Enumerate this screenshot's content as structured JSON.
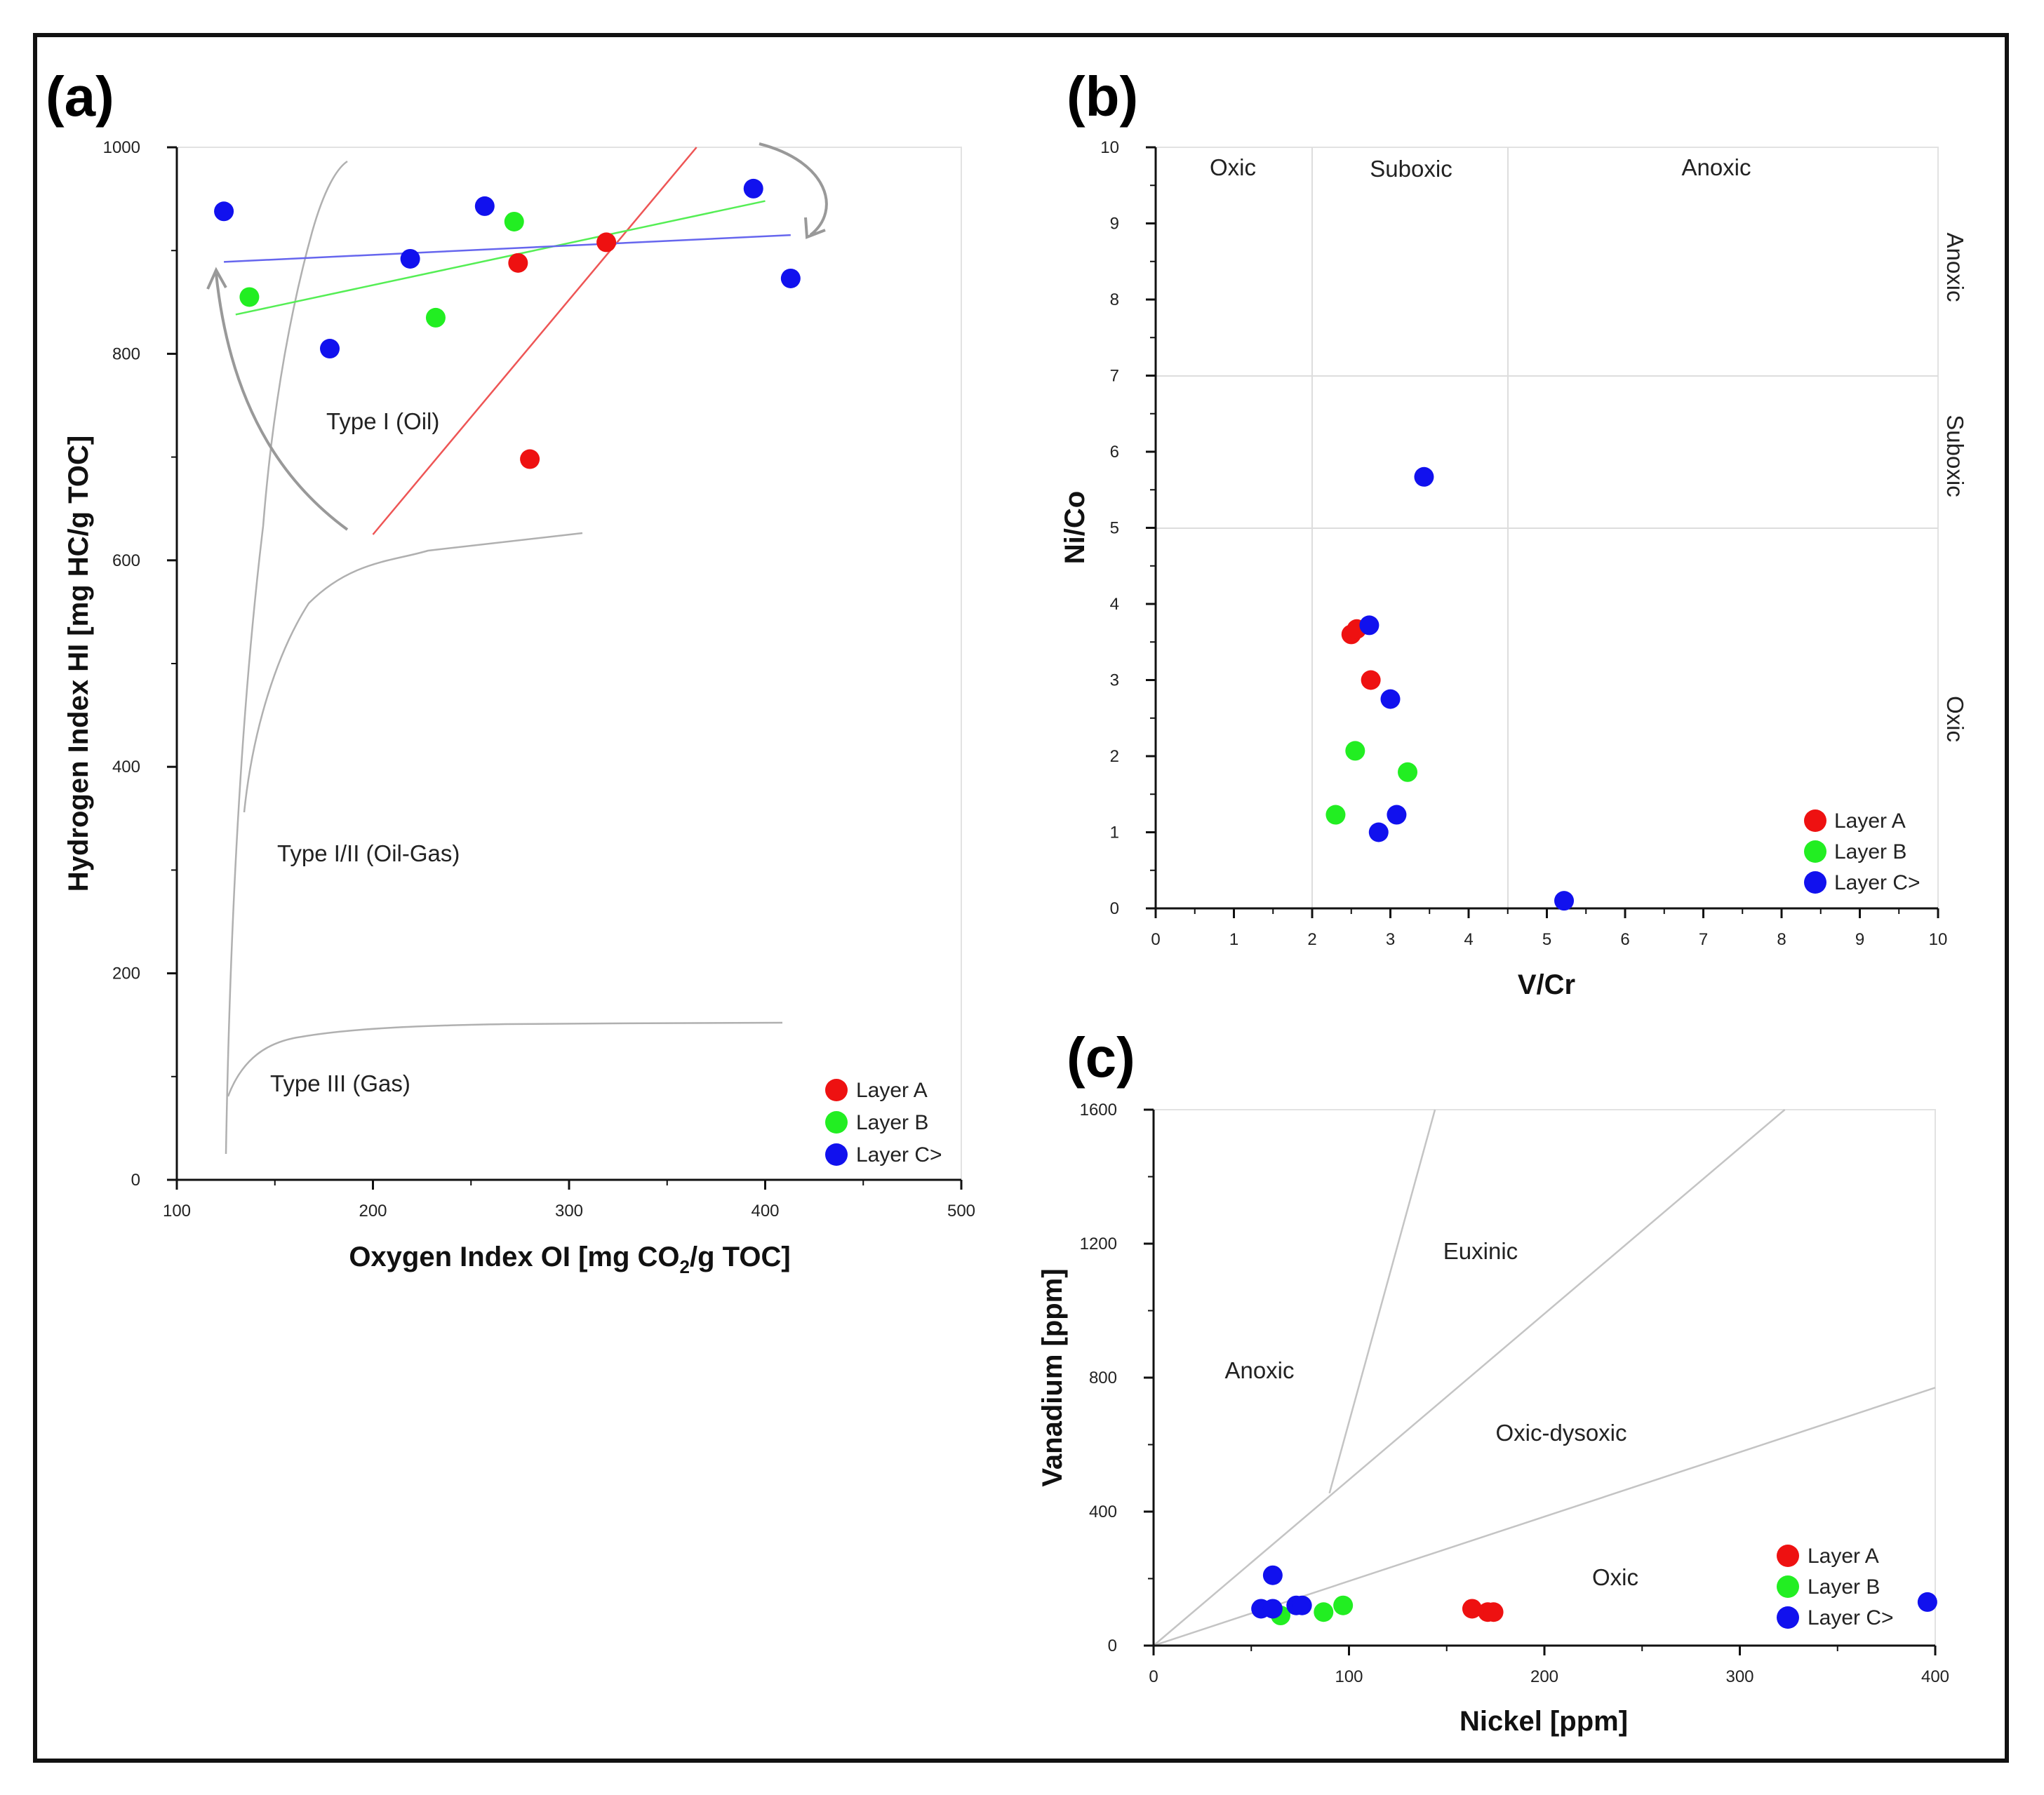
{
  "colors": {
    "layer_a": "#ee1111",
    "layer_b": "#22ee22",
    "layer_c": "#1111ee",
    "fit_a": "#ee5555",
    "fit_b": "#55ee55",
    "fit_c": "#6666ee",
    "curve": "#b0b0b0"
  },
  "chart_data": [
    {
      "id": "a",
      "panel_label": "(a)",
      "type": "scatter",
      "xlabel": "Oxygen Index OI [mg CO",
      "xlabel_sub": "2",
      "xlabel_tail": "/g TOC]",
      "ylabel": "Hydrogen Index HI [mg HC/g TOC]",
      "xlim": [
        100,
        500
      ],
      "ylim": [
        0,
        1000
      ],
      "xticks": [
        "100",
        "200",
        "300",
        "400",
        "500"
      ],
      "yticks": [
        "0",
        "200",
        "400",
        "600",
        "800",
        "1000"
      ],
      "regions": [
        "Type I (Oil)",
        "Type I/II (Oil-Gas)",
        "Type III (Gas)"
      ],
      "legend": [
        "Layer A",
        "Layer B",
        "Layer C>"
      ],
      "series": [
        {
          "name": "Layer A",
          "points": [
            [
              274,
              888
            ],
            [
              280,
              698
            ],
            [
              319,
              908
            ]
          ]
        },
        {
          "name": "Layer B",
          "points": [
            [
              137,
              855
            ],
            [
              232,
              835
            ],
            [
              272,
              928
            ]
          ]
        },
        {
          "name": "Layer C>",
          "points": [
            [
              124,
              938
            ],
            [
              178,
              805
            ],
            [
              219,
              892
            ],
            [
              257,
              943
            ],
            [
              394,
              960
            ],
            [
              413,
              873
            ]
          ]
        }
      ],
      "trend_lines": [
        {
          "series": "Layer A",
          "from": [
            200,
            625
          ],
          "to": [
            365,
            1000
          ]
        },
        {
          "series": "Layer B",
          "from": [
            130,
            838
          ],
          "to": [
            400,
            948
          ]
        },
        {
          "series": "Layer C>",
          "from": [
            124,
            889
          ],
          "to": [
            413,
            915
          ]
        }
      ]
    },
    {
      "id": "b",
      "panel_label": "(b)",
      "type": "scatter",
      "xlabel": "V/Cr",
      "ylabel": "Ni/Co",
      "xlim": [
        0,
        10
      ],
      "ylim": [
        0,
        10
      ],
      "xticks": [
        "0",
        "1",
        "2",
        "3",
        "4",
        "5",
        "6",
        "7",
        "8",
        "9",
        "10"
      ],
      "yticks": [
        "0",
        "1",
        "2",
        "3",
        "4",
        "5",
        "6",
        "7",
        "8",
        "9",
        "10"
      ],
      "x_region_boundaries": [
        2,
        4.5
      ],
      "y_region_boundaries": [
        5,
        7
      ],
      "top_regions": [
        "Oxic",
        "Suboxic",
        "Anoxic"
      ],
      "side_regions": [
        "Anoxic",
        "Suboxic",
        "Oxic"
      ],
      "legend": [
        "Layer A",
        "Layer B",
        "Layer C>"
      ],
      "series": [
        {
          "name": "Layer A",
          "points": [
            [
              2.5,
              3.6
            ],
            [
              2.57,
              3.67
            ],
            [
              2.75,
              3.0
            ]
          ]
        },
        {
          "name": "Layer B",
          "points": [
            [
              2.3,
              1.23
            ],
            [
              2.55,
              2.07
            ],
            [
              3.22,
              1.79
            ]
          ]
        },
        {
          "name": "Layer C>",
          "points": [
            [
              2.73,
              3.72
            ],
            [
              3.0,
              2.75
            ],
            [
              3.43,
              5.67
            ],
            [
              2.85,
              1.0
            ],
            [
              3.08,
              1.23
            ],
            [
              5.22,
              0.1
            ]
          ]
        }
      ]
    },
    {
      "id": "c",
      "panel_label": "(c)",
      "type": "scatter",
      "xlabel": "Nickel [ppm]",
      "ylabel": "Vanadium [ppm]",
      "xlim": [
        0,
        400
      ],
      "ylim": [
        0,
        1600
      ],
      "xticks": [
        "0",
        "100",
        "200",
        "300",
        "400"
      ],
      "yticks": [
        "0",
        "400",
        "800",
        "1200",
        "1600"
      ],
      "regions": [
        "Anoxic",
        "Euxinic",
        "Oxic-dysoxic",
        "Oxic"
      ],
      "boundary_lines": [
        {
          "from": [
            0,
            0
          ],
          "to": [
            323,
            1600
          ]
        },
        {
          "from": [
            90,
            455
          ],
          "to": [
            144,
            1600
          ]
        },
        {
          "from": [
            0,
            0
          ],
          "to": [
            400,
            770
          ]
        }
      ],
      "legend": [
        "Layer A",
        "Layer B",
        "Layer C>"
      ],
      "series": [
        {
          "name": "Layer A",
          "points": [
            [
              163,
              110
            ],
            [
              171,
              100
            ],
            [
              174,
              100
            ]
          ]
        },
        {
          "name": "Layer B",
          "points": [
            [
              65,
              90
            ],
            [
              87,
              100
            ],
            [
              97,
              120
            ]
          ]
        },
        {
          "name": "Layer C>",
          "points": [
            [
              55,
              110
            ],
            [
              61,
              110
            ],
            [
              61,
              210
            ],
            [
              73,
              120
            ],
            [
              76,
              120
            ],
            [
              396,
              130
            ]
          ]
        }
      ]
    }
  ]
}
